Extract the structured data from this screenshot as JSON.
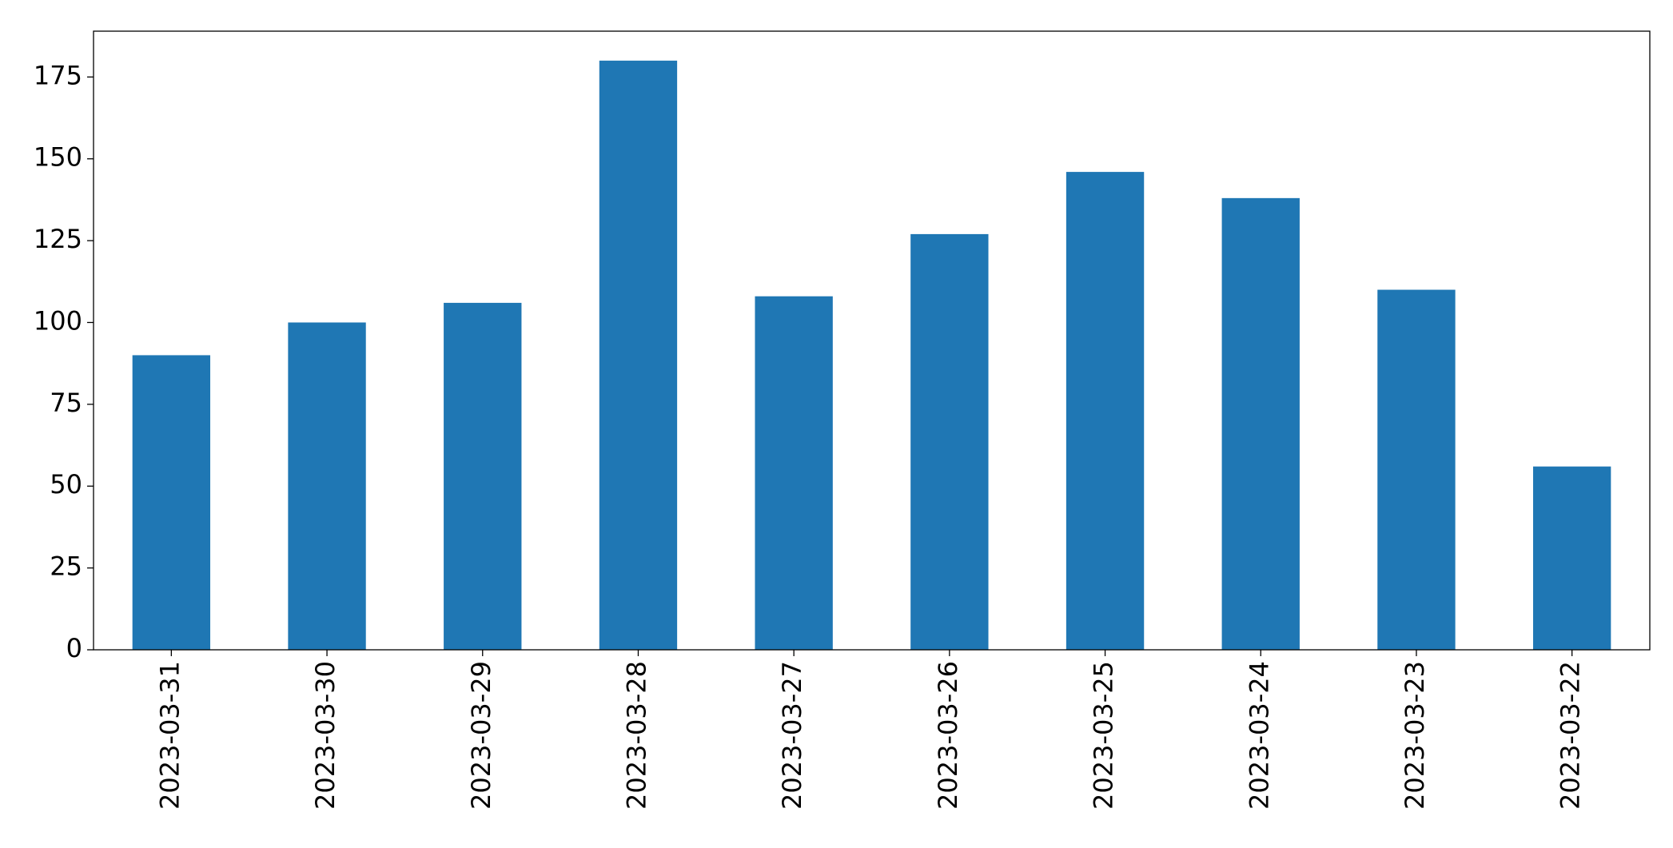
{
  "chart_data": {
    "type": "bar",
    "categories": [
      "2023-03-31",
      "2023-03-30",
      "2023-03-29",
      "2023-03-28",
      "2023-03-27",
      "2023-03-26",
      "2023-03-25",
      "2023-03-24",
      "2023-03-23",
      "2023-03-22"
    ],
    "values": [
      90,
      100,
      106,
      180,
      108,
      127,
      146,
      138,
      110,
      56
    ],
    "color": "#1f77b4",
    "ylim": [
      0,
      189
    ],
    "yticks": [
      0,
      25,
      50,
      75,
      100,
      125,
      150,
      175
    ],
    "grid": false
  }
}
